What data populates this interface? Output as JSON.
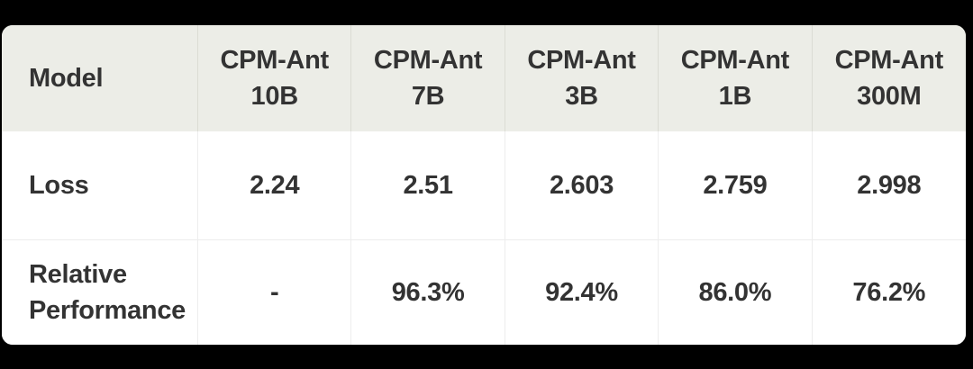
{
  "chart_data": {
    "type": "table",
    "columns": [
      {
        "name": "Model"
      },
      {
        "name": "CPM-Ant 10B",
        "line1": "CPM-Ant",
        "line2": "10B"
      },
      {
        "name": "CPM-Ant 7B",
        "line1": "CPM-Ant",
        "line2": "7B"
      },
      {
        "name": "CPM-Ant 3B",
        "line1": "CPM-Ant",
        "line2": "3B"
      },
      {
        "name": "CPM-Ant 1B",
        "line1": "CPM-Ant",
        "line2": "1B"
      },
      {
        "name": "CPM-Ant 300M",
        "line1": "CPM-Ant",
        "line2": "300M"
      }
    ],
    "rows": [
      {
        "label": "Loss",
        "values": [
          "2.24",
          "2.51",
          "2.603",
          "2.759",
          "2.998"
        ]
      },
      {
        "label": "Relative Performance",
        "label_line1": "Relative",
        "label_line2": "Performance",
        "values": [
          "-",
          "96.3%",
          "92.4%",
          "86.0%",
          "76.2%"
        ]
      }
    ]
  },
  "colors": {
    "page_background": "#000000",
    "card_background": "#ffffff",
    "header_background": "#ECEDE7",
    "text": "#333333",
    "divider_header": "#DBDCD4",
    "divider_body": "#EDEDED"
  }
}
